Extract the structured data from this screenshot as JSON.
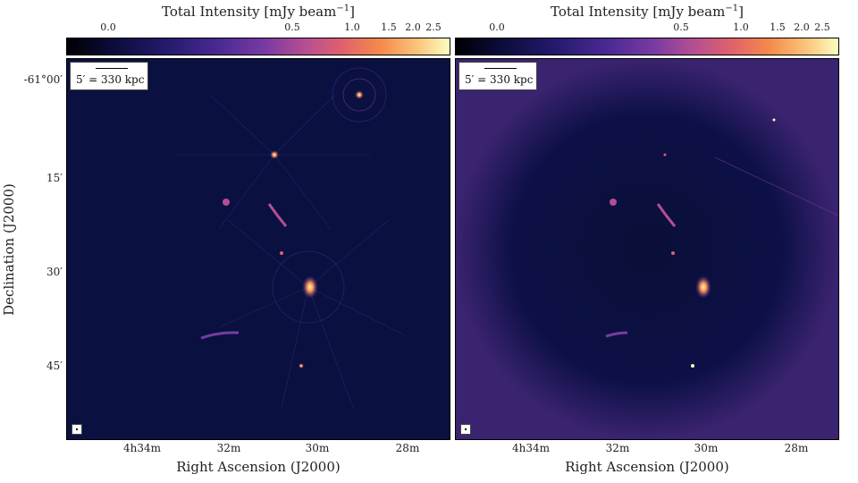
{
  "colorbar": {
    "title": "Total Intensity [mJy beam",
    "title_sup": "−1",
    "title_close": "]",
    "ticks": [
      "0.0",
      "0.5",
      "1.0",
      "1.5",
      "2.0",
      "2.5"
    ]
  },
  "scalebar": {
    "label": "5′  =  330 kpc"
  },
  "axes": {
    "xlabel": "Right Ascension (J2000)",
    "ylabel": "Declination (J2000)",
    "xticks": [
      "4h34m",
      "32m",
      "30m",
      "28m"
    ],
    "yticks": [
      "-61°00′",
      "15′",
      "30′",
      "45′"
    ]
  },
  "colors": {
    "background": "#0a1040",
    "colormap": "magma"
  }
}
